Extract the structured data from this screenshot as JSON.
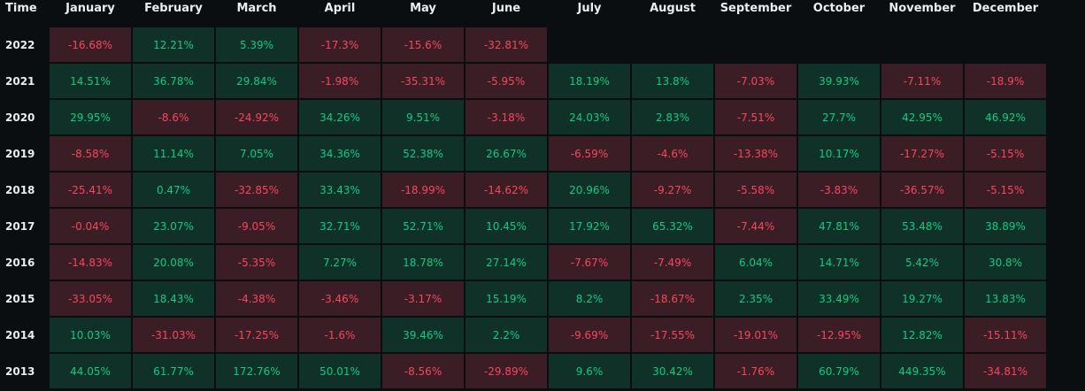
{
  "colors": {
    "background": "#0b0e11",
    "header_text": "#eaecef",
    "positive_text": "#0ecb81",
    "positive_bg": "#103127",
    "negative_text": "#f6465d",
    "negative_bg": "#3b1e25"
  },
  "header": {
    "time_label": "Time",
    "months": [
      "January",
      "February",
      "March",
      "April",
      "May",
      "June",
      "July",
      "August",
      "September",
      "October",
      "November",
      "December"
    ]
  },
  "rows": [
    {
      "year": "2022",
      "values": [
        "-16.68%",
        "12.21%",
        "5.39%",
        "-17.3%",
        "-15.6%",
        "-32.81%",
        "",
        "",
        "",
        "",
        "",
        ""
      ]
    },
    {
      "year": "2021",
      "values": [
        "14.51%",
        "36.78%",
        "29.84%",
        "-1.98%",
        "-35.31%",
        "-5.95%",
        "18.19%",
        "13.8%",
        "-7.03%",
        "39.93%",
        "-7.11%",
        "-18.9%"
      ]
    },
    {
      "year": "2020",
      "values": [
        "29.95%",
        "-8.6%",
        "-24.92%",
        "34.26%",
        "9.51%",
        "-3.18%",
        "24.03%",
        "2.83%",
        "-7.51%",
        "27.7%",
        "42.95%",
        "46.92%"
      ]
    },
    {
      "year": "2019",
      "values": [
        "-8.58%",
        "11.14%",
        "7.05%",
        "34.36%",
        "52.38%",
        "26.67%",
        "-6.59%",
        "-4.6%",
        "-13.38%",
        "10.17%",
        "-17.27%",
        "-5.15%"
      ]
    },
    {
      "year": "2018",
      "values": [
        "-25.41%",
        "0.47%",
        "-32.85%",
        "33.43%",
        "-18.99%",
        "-14.62%",
        "20.96%",
        "-9.27%",
        "-5.58%",
        "-3.83%",
        "-36.57%",
        "-5.15%"
      ]
    },
    {
      "year": "2017",
      "values": [
        "-0.04%",
        "23.07%",
        "-9.05%",
        "32.71%",
        "52.71%",
        "10.45%",
        "17.92%",
        "65.32%",
        "-7.44%",
        "47.81%",
        "53.48%",
        "38.89%"
      ]
    },
    {
      "year": "2016",
      "values": [
        "-14.83%",
        "20.08%",
        "-5.35%",
        "7.27%",
        "18.78%",
        "27.14%",
        "-7.67%",
        "-7.49%",
        "6.04%",
        "14.71%",
        "5.42%",
        "30.8%"
      ]
    },
    {
      "year": "2015",
      "values": [
        "-33.05%",
        "18.43%",
        "-4.38%",
        "-3.46%",
        "-3.17%",
        "15.19%",
        "8.2%",
        "-18.67%",
        "2.35%",
        "33.49%",
        "19.27%",
        "13.83%"
      ]
    },
    {
      "year": "2014",
      "values": [
        "10.03%",
        "-31.03%",
        "-17.25%",
        "-1.6%",
        "39.46%",
        "2.2%",
        "-9.69%",
        "-17.55%",
        "-19.01%",
        "-12.95%",
        "12.82%",
        "-15.11%"
      ]
    },
    {
      "year": "2013",
      "values": [
        "44.05%",
        "61.77%",
        "172.76%",
        "50.01%",
        "-8.56%",
        "-29.89%",
        "9.6%",
        "30.42%",
        "-1.76%",
        "60.79%",
        "449.35%",
        "-34.81%"
      ]
    }
  ]
}
